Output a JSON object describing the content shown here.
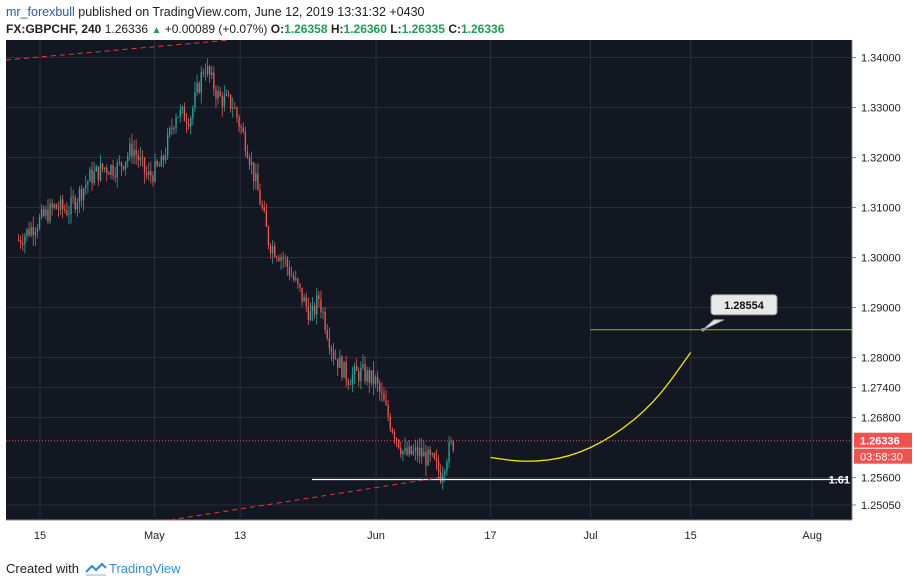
{
  "header": {
    "author": "mr_forexbull",
    "published_text": "published on TradingView.com, June 12, 2019 13:31:32 +0430",
    "symbol": "FX:GBPCHF, 240",
    "last": "1.26336",
    "change": "+0.00089 (+0.07%)",
    "o_label": "O:",
    "o_value": "1.26358",
    "h_label": "H:",
    "h_value": "1.26360",
    "l_label": "L:",
    "l_value": "1.26335",
    "c_label": "C:",
    "c_value": "1.26336"
  },
  "footer": {
    "created_with": "Created with",
    "brand": "TradingView"
  },
  "colors": {
    "background": "#131722",
    "grid": "#2a2e39",
    "up": "#26a69a",
    "down": "#ef5350",
    "price_line": "#ef5350",
    "target_line": "#9bb236",
    "projection": "#f2e600",
    "support": "#ffffff",
    "trendline": "#e53935"
  },
  "chart_data": {
    "type": "candlestick",
    "symbol": "GBPCHF",
    "timeframe": "240",
    "ylim": [
      1.2475,
      1.3435
    ],
    "y_ticks": [
      "1.34000",
      "1.33000",
      "1.32000",
      "1.31000",
      "1.30000",
      "1.29000",
      "1.28000",
      "1.27400",
      "1.26800",
      "1.25600",
      "1.25050"
    ],
    "y_tick_values": [
      1.34,
      1.33,
      1.32,
      1.31,
      1.3,
      1.29,
      1.28,
      1.274,
      1.268,
      1.256,
      1.2505
    ],
    "x_ticks": [
      "15",
      "May",
      "13",
      "Jun",
      "17",
      "Jul",
      "15",
      "Aug"
    ],
    "x_tick_dates": [
      "2019-04-15",
      "2019-05-01",
      "2019-05-13",
      "2019-06-01",
      "2019-06-17",
      "2019-07-01",
      "2019-07-15",
      "2019-08-01"
    ],
    "current_price": "1.26336",
    "countdown": "03:58:30",
    "target_label": "1.28554",
    "target_level": 1.28554,
    "support_level": 1.2556,
    "support_label": "1.61",
    "close_path_points": [
      [
        "2019-04-12",
        1.3035
      ],
      [
        "2019-04-15",
        1.3075
      ],
      [
        "2019-04-17",
        1.31
      ],
      [
        "2019-04-19",
        1.3095
      ],
      [
        "2019-04-22",
        1.316
      ],
      [
        "2019-04-24",
        1.318
      ],
      [
        "2019-04-26",
        1.318
      ],
      [
        "2019-04-28",
        1.322
      ],
      [
        "2019-04-30",
        1.316
      ],
      [
        "2019-05-02",
        1.3185
      ],
      [
        "2019-05-04",
        1.329
      ],
      [
        "2019-05-06",
        1.328
      ],
      [
        "2019-05-08",
        1.3385
      ],
      [
        "2019-05-10",
        1.332
      ],
      [
        "2019-05-12",
        1.3305
      ],
      [
        "2019-05-14",
        1.322
      ],
      [
        "2019-05-16",
        1.31
      ],
      [
        "2019-05-17",
        1.303
      ],
      [
        "2019-05-19",
        1.3
      ],
      [
        "2019-05-21",
        1.294
      ],
      [
        "2019-05-23",
        1.288
      ],
      [
        "2019-05-24",
        1.292
      ],
      [
        "2019-05-26",
        1.281
      ],
      [
        "2019-05-28",
        1.276
      ],
      [
        "2019-05-30",
        1.277
      ],
      [
        "2019-06-01",
        1.275
      ],
      [
        "2019-06-03",
        1.267
      ],
      [
        "2019-06-05",
        1.2605
      ],
      [
        "2019-06-07",
        1.261
      ],
      [
        "2019-06-09",
        1.259
      ],
      [
        "2019-06-10",
        1.2565
      ],
      [
        "2019-06-11",
        1.261
      ],
      [
        "2019-06-12",
        1.2634
      ]
    ],
    "projection_points": [
      [
        "2019-06-17",
        1.26
      ],
      [
        "2019-06-22",
        1.259
      ],
      [
        "2019-06-28",
        1.26
      ],
      [
        "2019-07-04",
        1.264
      ],
      [
        "2019-07-10",
        1.271
      ],
      [
        "2019-07-15",
        1.281
      ]
    ]
  }
}
